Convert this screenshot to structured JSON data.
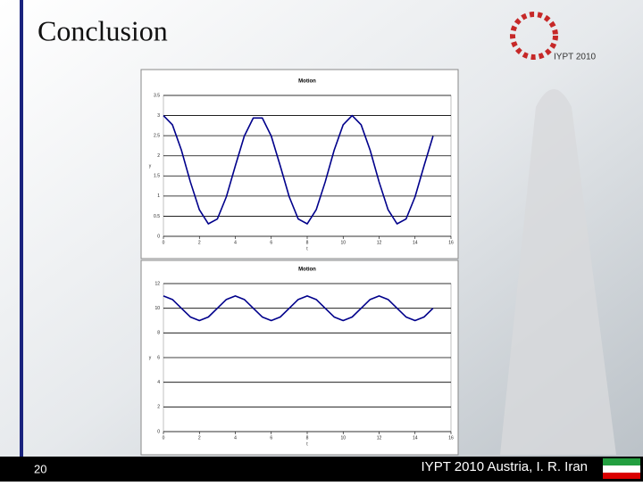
{
  "slide_title": "Conclusion",
  "logo_text": "IYPT 2010",
  "footer": {
    "page_number": "20",
    "text": "IYPT 2010 Austria, I. R. Iran"
  },
  "chart_data": [
    {
      "type": "line",
      "title": "Motion",
      "xlabel": "t",
      "ylabel": "y",
      "color": "#00008b",
      "grid": true,
      "x": [
        0,
        0.5,
        1,
        1.5,
        2,
        2.5,
        3,
        3.5,
        4,
        4.5,
        5,
        5.5,
        6,
        6.5,
        7,
        7.5,
        8,
        8.5,
        9,
        9.5,
        10,
        10.5,
        11,
        11.5,
        12,
        12.5,
        13,
        13.5,
        14,
        14.5,
        15
      ],
      "values": [
        3.0,
        2.77,
        2.14,
        1.35,
        0.66,
        0.31,
        0.43,
        0.98,
        1.75,
        2.49,
        2.94,
        2.94,
        2.49,
        1.75,
        0.98,
        0.43,
        0.31,
        0.66,
        1.35,
        2.14,
        2.77,
        3.0,
        2.77,
        2.14,
        1.35,
        0.66,
        0.31,
        0.43,
        0.98,
        1.75,
        2.49
      ],
      "xlim": [
        0,
        16
      ],
      "xticks": [
        0,
        2,
        4,
        6,
        8,
        10,
        12,
        14,
        16
      ],
      "ylim": [
        0,
        3.5
      ],
      "yticks": [
        0,
        0.5,
        1,
        1.5,
        2,
        2.5,
        3,
        3.5
      ]
    },
    {
      "type": "line",
      "title": "Motion",
      "xlabel": "t",
      "ylabel": "y",
      "color": "#00008b",
      "grid": true,
      "x": [
        0,
        0.5,
        1,
        1.5,
        2,
        2.5,
        3,
        3.5,
        4,
        4.5,
        5,
        5.5,
        6,
        6.5,
        7,
        7.5,
        8,
        8.5,
        9,
        9.5,
        10,
        10.5,
        11,
        11.5,
        12,
        12.5,
        13,
        13.5,
        14,
        14.5,
        15
      ],
      "values": [
        11,
        10.71,
        10,
        9.29,
        9,
        9.29,
        10,
        10.71,
        11,
        10.71,
        10,
        9.29,
        9,
        9.29,
        10,
        10.71,
        11,
        10.71,
        10,
        9.29,
        9,
        9.29,
        10,
        10.71,
        11,
        10.71,
        10,
        9.29,
        9,
        9.29,
        10
      ],
      "xlim": [
        0,
        16
      ],
      "xticks": [
        0,
        2,
        4,
        6,
        8,
        10,
        12,
        14,
        16
      ],
      "ylim": [
        0,
        12
      ],
      "yticks": [
        0,
        2,
        4,
        6,
        8,
        10,
        12
      ]
    }
  ]
}
